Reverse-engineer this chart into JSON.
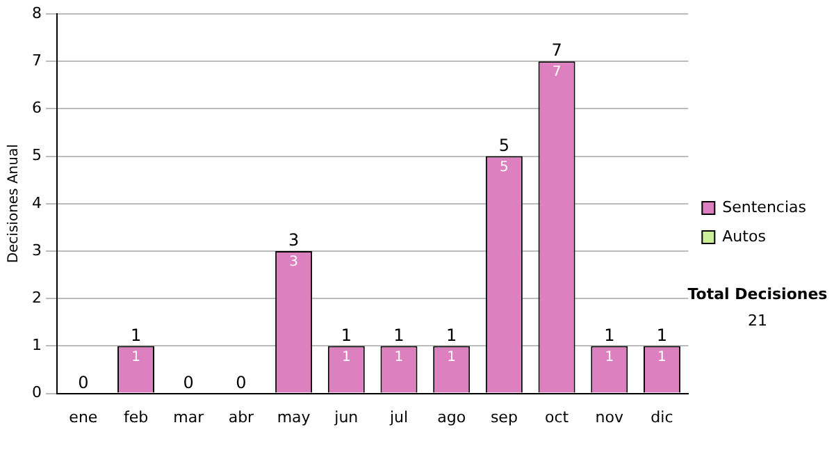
{
  "chart_data": {
    "type": "bar",
    "stacked": true,
    "ylabel": "Decisiones Anual",
    "categories": [
      "ene",
      "feb",
      "mar",
      "abr",
      "may",
      "jun",
      "jul",
      "ago",
      "sep",
      "oct",
      "nov",
      "dic"
    ],
    "series": [
      {
        "name": "Sentencias",
        "color": "#dd80bf",
        "values": [
          0,
          1,
          0,
          0,
          3,
          1,
          1,
          1,
          5,
          7,
          1,
          1
        ],
        "value_labels": [
          null,
          "1",
          null,
          null,
          "3",
          "1",
          "1",
          "1",
          "5",
          "7",
          "1",
          "1"
        ]
      },
      {
        "name": "Autos",
        "color": "#ccee99",
        "values": [
          0,
          0,
          0,
          0,
          0,
          0,
          0,
          0,
          0,
          0,
          0,
          0
        ]
      }
    ],
    "totals": [
      "0",
      "1",
      "0",
      "0",
      "3",
      "1",
      "1",
      "1",
      "5",
      "7",
      "1",
      "1"
    ],
    "ylim": [
      0,
      8
    ],
    "yticks": [
      0,
      1,
      2,
      3,
      4,
      5,
      6,
      7,
      8
    ],
    "grid": "y",
    "legend": "right",
    "annotations": [
      "Total Decisiones",
      "21"
    ]
  }
}
